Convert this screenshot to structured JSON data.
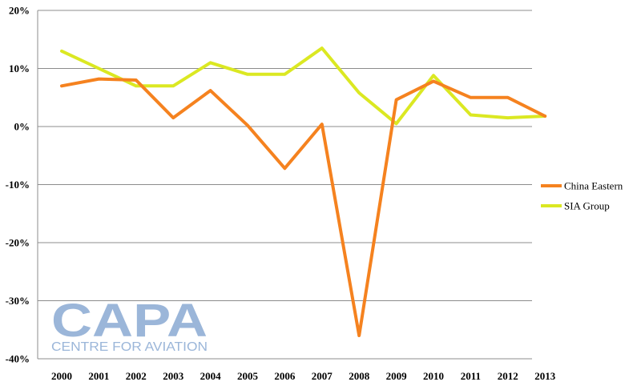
{
  "chart_data": {
    "type": "line",
    "x": [
      "2000",
      "2001",
      "2002",
      "2003",
      "2004",
      "2005",
      "2006",
      "2007",
      "2008",
      "2009",
      "2010",
      "2011",
      "2012",
      "2013"
    ],
    "ylim": [
      -40,
      20
    ],
    "yticks": [
      20,
      10,
      0,
      -10,
      -20,
      -30,
      -40
    ],
    "ytick_labels": [
      "20%",
      "10%",
      "0%",
      "-10%",
      "-20%",
      "-30%",
      "-40%"
    ],
    "grid": true,
    "legend_position": "right",
    "series": [
      {
        "name": "China Eastern",
        "color": "#f5821f",
        "values": [
          7,
          8.2,
          8,
          1.5,
          6.2,
          0.2,
          -7.2,
          0.4,
          -36,
          4.6,
          7.8,
          5,
          5,
          1.8
        ]
      },
      {
        "name": "SIA Group",
        "color": "#dbe822",
        "values": [
          13,
          10,
          7,
          7,
          11,
          9,
          9,
          13.5,
          5.8,
          0.5,
          8.8,
          2,
          1.5,
          1.8
        ]
      }
    ]
  },
  "watermark": {
    "logo_text": "CAPA",
    "subtitle": "CENTRE FOR AVIATION",
    "color": "#9bb6d9"
  }
}
